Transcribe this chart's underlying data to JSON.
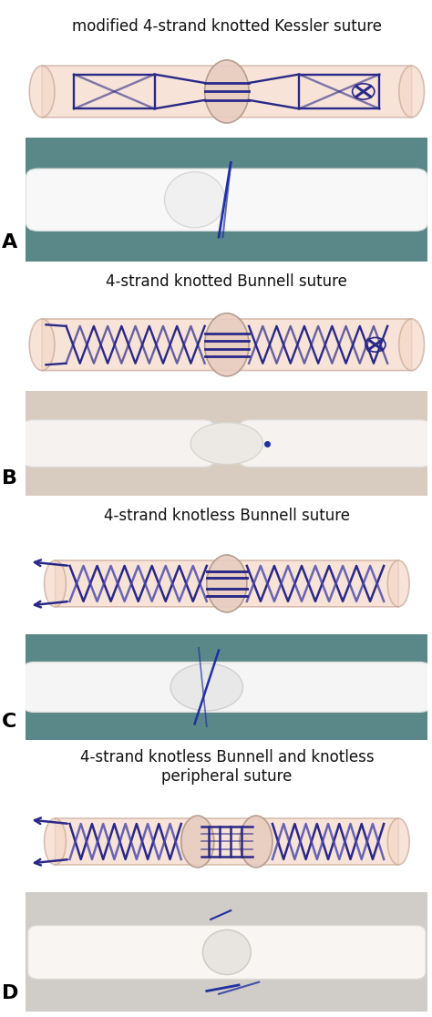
{
  "panels": [
    {
      "label": "A",
      "title": "modified 4-strand knotted Kessler suture",
      "title_lines": 1,
      "photo_bg": "#5a8a8c",
      "photo_tendon": "#f5f5f5"
    },
    {
      "label": "B",
      "title": "4-strand knotted Bunnell suture",
      "title_lines": 1,
      "photo_bg": "#d8d0c8",
      "photo_tendon": "#f0ece8"
    },
    {
      "label": "C",
      "title": "4-strand knotless Bunnell suture",
      "title_lines": 1,
      "photo_bg": "#6a9a9c",
      "photo_tendon": "#f5f5f5"
    },
    {
      "label": "D",
      "title": "4-strand knotless Bunnell and knotless\nperipheral suture",
      "title_lines": 2,
      "photo_bg": "#d8d0c8",
      "photo_tendon": "#f5f2ee"
    }
  ],
  "bg_color": "#ffffff",
  "text_color": "#111111",
  "label_color": "#000000",
  "title_fontsize": 12,
  "label_fontsize": 16,
  "suture_color": "#2a2888",
  "suture_color2": "#4444aa",
  "tendon_fill": "#f5d8c8",
  "tendon_edge": "#c8a898",
  "junction_fill": "#e8ccc0",
  "junction_edge": "#b09888"
}
